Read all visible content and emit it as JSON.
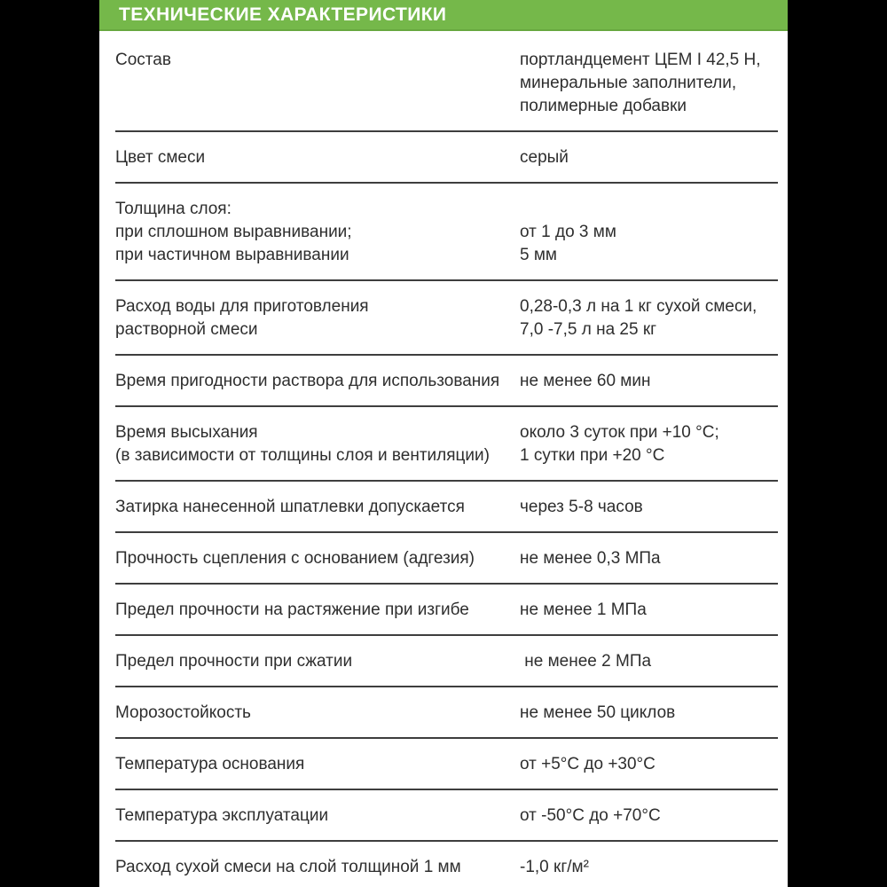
{
  "header": {
    "title": "ТЕХНИЧЕСКИЕ ХАРАКТЕРИСТИКИ"
  },
  "colors": {
    "accent_green": "#75b84a",
    "accent_green_dark": "#68a83f",
    "body_text": "#2e2e2e",
    "divider": "#3e3e3e",
    "letterbox": "#000000",
    "sheet_background": "#ffffff"
  },
  "table": {
    "rows": [
      {
        "label_lines": [
          "Состав"
        ],
        "value_lines": [
          "портландцемент ЦЕМ I 42,5 Н,",
          "минеральные заполнители,",
          "полимерные добавки"
        ],
        "value_offset": 0
      },
      {
        "label_lines": [
          "Цвет смеси"
        ],
        "value_lines": [
          "серый"
        ],
        "value_offset": 0
      },
      {
        "label_lines": [
          "Толщина слоя:",
          "при сплошном выравнивании;",
          "при частичном выравнивании"
        ],
        "value_lines": [
          "от 1 до 3 мм",
          "5 мм"
        ],
        "value_offset": 1
      },
      {
        "label_lines": [
          "Расход воды для приготовления",
          "растворной смеси"
        ],
        "value_lines": [
          "0,28-0,3 л на 1 кг сухой смеси,",
          "7,0 -7,5 л на 25 кг"
        ],
        "value_offset": 0
      },
      {
        "label_lines": [
          "Время пригодности раствора для использования"
        ],
        "value_lines": [
          "не менее 60 мин"
        ],
        "value_offset": 0
      },
      {
        "label_lines": [
          "Время высыхания",
          "(в зависимости от толщины слоя и вентиляции)"
        ],
        "value_lines": [
          "около 3 суток при +10 °С;",
          "1 сутки при +20 °С"
        ],
        "value_offset": 0
      },
      {
        "label_lines": [
          "Затирка нанесенной шпатлевки допускается"
        ],
        "value_lines": [
          "через 5-8 часов"
        ],
        "value_offset": 0
      },
      {
        "label_lines": [
          "Прочность сцепления с основанием (адгезия)"
        ],
        "value_lines": [
          "не менее 0,3 МПа"
        ],
        "value_offset": 0
      },
      {
        "label_lines": [
          "Предел прочности на растяжение при изгибе"
        ],
        "value_lines": [
          "не менее 1 МПа"
        ],
        "value_offset": 0
      },
      {
        "label_lines": [
          "Предел прочности при сжатии"
        ],
        "value_lines": [
          " не менее 2 МПа"
        ],
        "value_offset": 0
      },
      {
        "label_lines": [
          "Морозостойкость"
        ],
        "value_lines": [
          "не менее 50 циклов"
        ],
        "value_offset": 0
      },
      {
        "label_lines": [
          "Температура основания"
        ],
        "value_lines": [
          "от +5°С до +30°С"
        ],
        "value_offset": 0
      },
      {
        "label_lines": [
          "Температура эксплуатации"
        ],
        "value_lines": [
          "от -50°С до +70°С"
        ],
        "value_offset": 0
      },
      {
        "label_lines": [
          "Расход сухой смеси на слой толщиной 1 мм"
        ],
        "value_lines": [
          "-1,0 кг/м²"
        ],
        "value_offset": 0
      }
    ]
  }
}
